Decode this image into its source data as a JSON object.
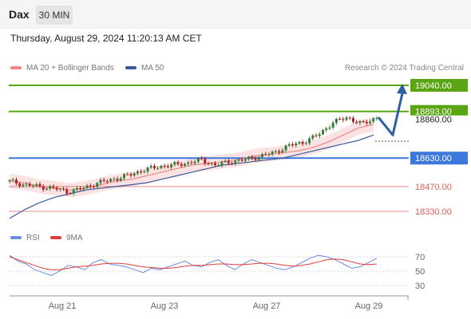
{
  "header": {
    "symbol": "Dax",
    "timeframe": "30 MIN",
    "datetime": "Thursday, August 29, 2024 11:20:13 AM CET"
  },
  "legend": {
    "ma20": "MA 20 + Bollinger Bands",
    "ma50": "MA 50",
    "source": "Research © 2024 Trading Central",
    "rsi": "RSI",
    "ma9": "9MA"
  },
  "colors": {
    "resistance_green": "#5aa514",
    "pivot_blue": "#3c78dc",
    "support_red": "#e05a5a",
    "ma20": "#ee8888",
    "ma50": "#3a5a99",
    "bollinger_fill": "#fbdcdc",
    "forecast_arrow": "#2e5f9e",
    "rsi_line": "#6a8de0",
    "rsi_ma": "#e03a3a",
    "candle_up": "#3a7a3a",
    "candle_down": "#b02020"
  },
  "chart_data": [
    {
      "type": "line",
      "title": "",
      "x_ticks": [
        "Aug 21",
        "Aug 23",
        "Aug 27",
        "Aug 29"
      ],
      "ylim": [
        18280,
        19090
      ],
      "levels": [
        {
          "value": 19040.0,
          "label": "19040.00",
          "kind": "resistance"
        },
        {
          "value": 18893.0,
          "label": "18893.00",
          "kind": "resistance"
        },
        {
          "value": 18630.0,
          "label": "18630.00",
          "kind": "pivot"
        },
        {
          "value": 18470.0,
          "label": "18470.00",
          "kind": "support"
        },
        {
          "value": 18330.0,
          "label": "18330.00",
          "kind": "support"
        }
      ],
      "last_price_label": "18860.00",
      "series": [
        {
          "name": "MA 20 + Bollinger Bands",
          "values": [
            18500,
            18490,
            18470,
            18460,
            18450,
            18460,
            18480,
            18500,
            18510,
            18530,
            18550,
            18570,
            18590,
            18600,
            18610,
            18620,
            18640,
            18650,
            18660,
            18670,
            18690,
            18720,
            18760,
            18800,
            18820
          ]
        },
        {
          "name": "MA 50",
          "values": [
            18290,
            18340,
            18380,
            18410,
            18430,
            18450,
            18460,
            18470,
            18480,
            18490,
            18510,
            18530,
            18550,
            18570,
            18590,
            18600,
            18610,
            18620,
            18630,
            18650,
            18670,
            18690,
            18710,
            18730,
            18760
          ]
        },
        {
          "name": "Price",
          "values": [
            18500,
            18480,
            18470,
            18460,
            18440,
            18460,
            18490,
            18510,
            18530,
            18560,
            18580,
            18590,
            18600,
            18620,
            18590,
            18610,
            18620,
            18640,
            18660,
            18700,
            18720,
            18760,
            18830,
            18860,
            18820,
            18860
          ]
        }
      ],
      "forecast": [
        18860,
        18760,
        19040
      ]
    },
    {
      "type": "line",
      "title": "",
      "y_ticks": [
        70,
        50,
        30
      ],
      "ylim": [
        20,
        80
      ],
      "series": [
        {
          "name": "RSI",
          "values": [
            72,
            64,
            60,
            52,
            48,
            44,
            50,
            58,
            56,
            52,
            62,
            66,
            60,
            58,
            56,
            52,
            48,
            54,
            52,
            56,
            60,
            64,
            58,
            56,
            62,
            66,
            58,
            52,
            60,
            66,
            62,
            58,
            54,
            52,
            56,
            62,
            68,
            72,
            70,
            66,
            60,
            54,
            56,
            62,
            68
          ]
        },
        {
          "name": "9MA",
          "values": [
            70,
            66,
            62,
            58,
            54,
            52,
            52,
            54,
            56,
            57,
            58,
            60,
            61,
            61,
            60,
            58,
            56,
            55,
            54,
            54,
            55,
            57,
            58,
            58,
            59,
            60,
            60,
            59,
            59,
            60,
            61,
            61,
            60,
            58,
            57,
            58,
            60,
            63,
            66,
            67,
            66,
            63,
            60,
            59,
            60
          ]
        }
      ]
    }
  ]
}
